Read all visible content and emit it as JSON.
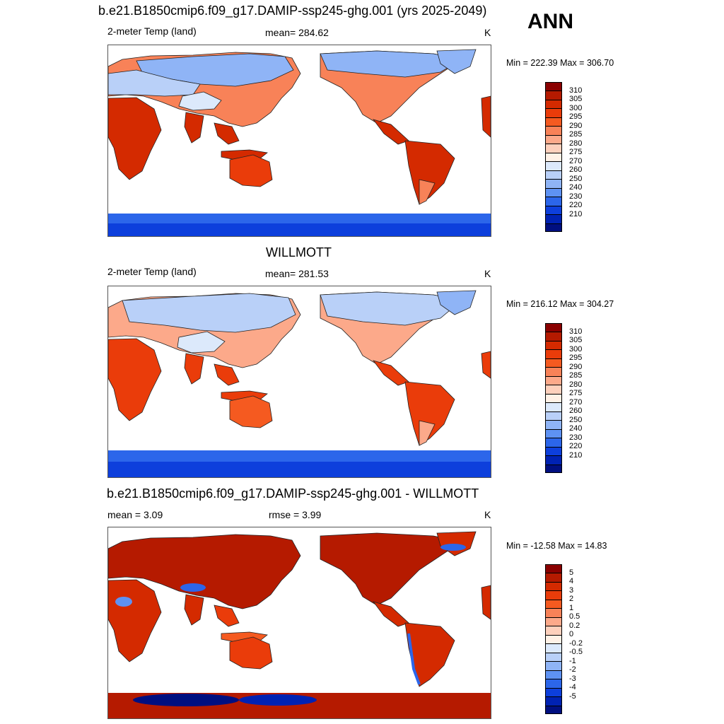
{
  "season": "ANN",
  "panels": [
    {
      "title": "b.e21.B1850cmip6.f09_g17.DAMIP-ssp245-ghg.001 (yrs 2025-2049)",
      "left_label": "2-meter Temp (land)",
      "center_label": "mean= 284.62",
      "units": "K",
      "minmax": "Min = 222.39 Max = 306.70",
      "legend_labels": [
        "310",
        "305",
        "300",
        "295",
        "290",
        "285",
        "280",
        "275",
        "270",
        "260",
        "250",
        "240",
        "230",
        "220",
        "210"
      ],
      "legend_colors": [
        "#8a0000",
        "#b51a00",
        "#d42a00",
        "#ea3c0a",
        "#f55a20",
        "#f88258",
        "#fca98a",
        "#fdd0bc",
        "#fff1e6",
        "#dce9fb",
        "#b9d0f8",
        "#8fb4f6",
        "#5e92f3",
        "#2c66ea",
        "#0d3fdc",
        "#0022b3",
        "#000f80"
      ]
    },
    {
      "title": "WILLMOTT",
      "left_label": "2-meter Temp (land)",
      "center_label": "mean= 281.53",
      "units": "K",
      "minmax": "Min = 216.12 Max = 304.27",
      "legend_labels": [
        "310",
        "305",
        "300",
        "295",
        "290",
        "285",
        "280",
        "275",
        "270",
        "260",
        "250",
        "240",
        "230",
        "220",
        "210"
      ],
      "legend_colors": [
        "#8a0000",
        "#b51a00",
        "#d42a00",
        "#ea3c0a",
        "#f55a20",
        "#f88258",
        "#fca98a",
        "#fdd0bc",
        "#fff1e6",
        "#dce9fb",
        "#b9d0f8",
        "#8fb4f6",
        "#5e92f3",
        "#2c66ea",
        "#0d3fdc",
        "#0022b3",
        "#000f80"
      ]
    },
    {
      "title": "b.e21.B1850cmip6.f09_g17.DAMIP-ssp245-ghg.001 - WILLMOTT",
      "left_label": "mean =   3.09",
      "center_label": "rmse =   3.99",
      "units": "K",
      "minmax": "Min = -12.58 Max =  14.83",
      "legend_labels": [
        "5",
        "4",
        "3",
        "2",
        "1",
        "0.5",
        "0.2",
        "0",
        "-0.2",
        "-0.5",
        "-1",
        "-2",
        "-3",
        "-4",
        "-5"
      ],
      "legend_colors": [
        "#8a0000",
        "#b51a00",
        "#d42a00",
        "#ea3c0a",
        "#f55a20",
        "#f88258",
        "#fca98a",
        "#fdd0bc",
        "#fff1e6",
        "#dce9fb",
        "#b9d0f8",
        "#8fb4f6",
        "#5e92f3",
        "#2c66ea",
        "#0d3fdc",
        "#0022b3",
        "#000f80"
      ]
    }
  ]
}
